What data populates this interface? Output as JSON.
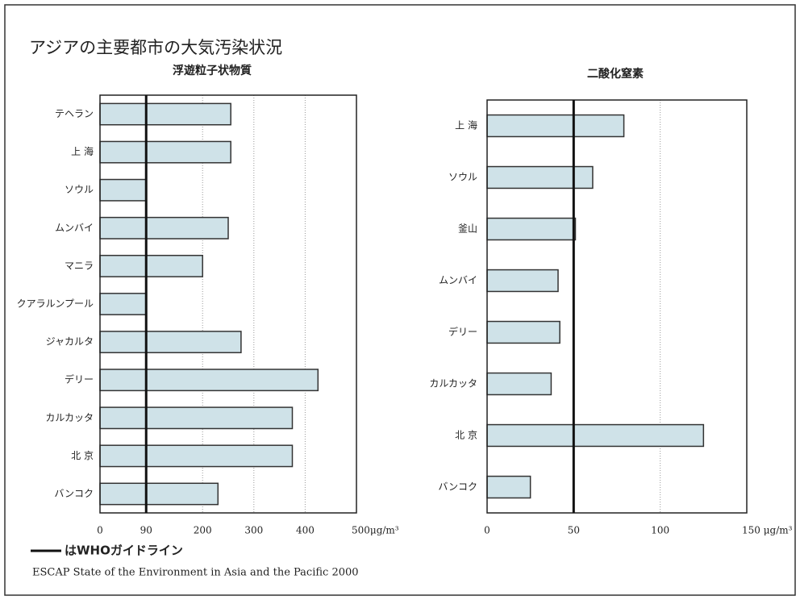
{
  "title": "アジアの主要都市の大気汚染状況",
  "legend_label": "はWHOガイドライン",
  "source": "ESCAP  State of the Environment in Asia and the Pacific 2000",
  "chart_data": [
    {
      "type": "barh",
      "title": "浮遊粒子状物質",
      "categories": [
        "テヘラン",
        "上 海",
        "ソウル",
        "ムンバイ",
        "マニラ",
        "クアラルンプール",
        "ジャカルタ",
        "デリー",
        "カルカッタ",
        "北 京",
        "バンコク"
      ],
      "values": [
        255,
        255,
        90,
        250,
        200,
        90,
        275,
        425,
        375,
        375,
        230
      ],
      "color": "#cfe2e8",
      "xlim": [
        0,
        500
      ],
      "xticks": [
        0,
        90,
        200,
        300,
        400,
        {
          "value": 500,
          "label": "500μg/m³"
        }
      ],
      "who_line": 90,
      "grid": true
    },
    {
      "type": "barh",
      "title": "二酸化窒素",
      "categories": [
        "上 海",
        "ソウル",
        "釜山",
        "ムンバイ",
        "デリー",
        "カルカッタ",
        "北 京",
        "バンコク"
      ],
      "values": [
        79,
        61,
        51,
        41,
        42,
        37,
        125,
        25
      ],
      "color": "#cfe2e8",
      "xlim": [
        0,
        150
      ],
      "xticks": [
        0,
        50,
        100,
        {
          "value": 150,
          "label": "150 μg/m³"
        }
      ],
      "who_line": 50,
      "grid": true
    }
  ]
}
